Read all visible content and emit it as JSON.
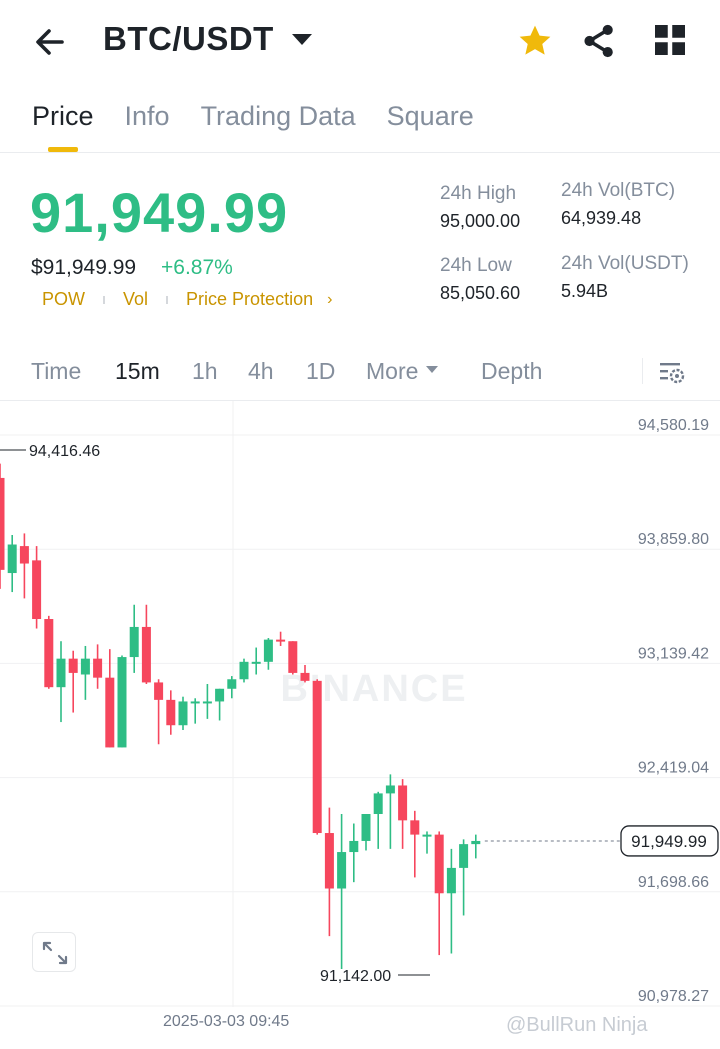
{
  "header": {
    "pair": "BTC/USDT",
    "icons": [
      "back-arrow-icon",
      "caret-down-icon",
      "star-icon",
      "share-icon",
      "grid-icon"
    ],
    "star_color": "#f0b90b"
  },
  "tabs": [
    {
      "label": "Price",
      "active": true
    },
    {
      "label": "Info",
      "active": false
    },
    {
      "label": "Trading Data",
      "active": false
    },
    {
      "label": "Square",
      "active": false
    }
  ],
  "price": {
    "last": "91,949.99",
    "fiat": "$91,949.99",
    "change": "+6.87%",
    "color": "#2ebd85"
  },
  "tags": [
    "POW",
    "Vol",
    "Price Protection"
  ],
  "stats": {
    "high_label": "24h High",
    "high_value": "95,000.00",
    "low_label": "24h Low",
    "low_value": "85,050.60",
    "vol_btc_label": "24h Vol(BTC)",
    "vol_btc_value": "64,939.48",
    "vol_usdt_label": "24h Vol(USDT)",
    "vol_usdt_value": "5.94B"
  },
  "intervals": [
    {
      "label": "Time",
      "active": false
    },
    {
      "label": "15m",
      "active": true
    },
    {
      "label": "1h",
      "active": false
    },
    {
      "label": "4h",
      "active": false
    },
    {
      "label": "1D",
      "active": false
    },
    {
      "label": "More",
      "active": false
    },
    {
      "label": "Depth",
      "active": false
    }
  ],
  "chart": {
    "y_ticks": [
      "94,580.19",
      "93,859.80",
      "93,139.42",
      "92,419.04",
      "91,698.66",
      "90,978.27"
    ],
    "high_marker": "94,416.46",
    "low_marker": "91,142.00",
    "last_price_marker": "91,949.99",
    "time_label": "2025-03-03 09:45",
    "watermark": "BINANCE",
    "user_watermark": "@BullRun Ninja",
    "up_color": "#2ebd85",
    "down_color": "#f6465d"
  },
  "chart_data": {
    "type": "candlestick",
    "ylim": [
      90978.27,
      94580.19
    ],
    "candles": [
      {
        "o": 94240,
        "h": 94330,
        "l": 93540,
        "c": 93660
      },
      {
        "o": 93640,
        "h": 93880,
        "l": 93520,
        "c": 93820
      },
      {
        "o": 93810,
        "h": 93890,
        "l": 93480,
        "c": 93700
      },
      {
        "o": 93720,
        "h": 93810,
        "l": 93290,
        "c": 93350
      },
      {
        "o": 93350,
        "h": 93370,
        "l": 92910,
        "c": 92920
      },
      {
        "o": 92920,
        "h": 93210,
        "l": 92700,
        "c": 93100
      },
      {
        "o": 93100,
        "h": 93150,
        "l": 92760,
        "c": 93010
      },
      {
        "o": 93000,
        "h": 93180,
        "l": 92840,
        "c": 93100
      },
      {
        "o": 93100,
        "h": 93190,
        "l": 92910,
        "c": 92980
      },
      {
        "o": 92980,
        "h": 93160,
        "l": 92540,
        "c": 92540
      },
      {
        "o": 92540,
        "h": 93120,
        "l": 92540,
        "c": 93110
      },
      {
        "o": 93110,
        "h": 93440,
        "l": 93010,
        "c": 93300
      },
      {
        "o": 93300,
        "h": 93440,
        "l": 92940,
        "c": 92950
      },
      {
        "o": 92950,
        "h": 92970,
        "l": 92560,
        "c": 92840
      },
      {
        "o": 92840,
        "h": 92900,
        "l": 92620,
        "c": 92680
      },
      {
        "o": 92680,
        "h": 92860,
        "l": 92650,
        "c": 92830
      },
      {
        "o": 92830,
        "h": 92850,
        "l": 92690,
        "c": 92830
      },
      {
        "o": 92830,
        "h": 92940,
        "l": 92720,
        "c": 92830
      },
      {
        "o": 92830,
        "h": 92910,
        "l": 92710,
        "c": 92910
      },
      {
        "o": 92910,
        "h": 92990,
        "l": 92850,
        "c": 92970
      },
      {
        "o": 92970,
        "h": 93100,
        "l": 92950,
        "c": 93080
      },
      {
        "o": 93080,
        "h": 93170,
        "l": 93000,
        "c": 93080
      },
      {
        "o": 93080,
        "h": 93230,
        "l": 93030,
        "c": 93220
      },
      {
        "o": 93220,
        "h": 93270,
        "l": 93180,
        "c": 93210
      },
      {
        "o": 93210,
        "h": 93210,
        "l": 93000,
        "c": 93010
      },
      {
        "o": 93010,
        "h": 93060,
        "l": 92950,
        "c": 92960
      },
      {
        "o": 92960,
        "h": 92970,
        "l": 91990,
        "c": 92000
      },
      {
        "o": 92000,
        "h": 92160,
        "l": 91350,
        "c": 91650
      },
      {
        "o": 91650,
        "h": 92120,
        "l": 91142,
        "c": 91880
      },
      {
        "o": 91880,
        "h": 92060,
        "l": 91690,
        "c": 91950
      },
      {
        "o": 91950,
        "h": 92110,
        "l": 91890,
        "c": 92120
      },
      {
        "o": 92120,
        "h": 92260,
        "l": 91900,
        "c": 92250
      },
      {
        "o": 92250,
        "h": 92370,
        "l": 91900,
        "c": 92300
      },
      {
        "o": 92300,
        "h": 92340,
        "l": 91900,
        "c": 92080
      },
      {
        "o": 92080,
        "h": 92140,
        "l": 91720,
        "c": 91990
      },
      {
        "o": 91990,
        "h": 92010,
        "l": 91870,
        "c": 91990
      },
      {
        "o": 91990,
        "h": 92010,
        "l": 91230,
        "c": 91620
      },
      {
        "o": 91620,
        "h": 91900,
        "l": 91240,
        "c": 91780
      },
      {
        "o": 91780,
        "h": 91960,
        "l": 91480,
        "c": 91930
      },
      {
        "o": 91930,
        "h": 91990,
        "l": 91840,
        "c": 91950
      }
    ]
  }
}
